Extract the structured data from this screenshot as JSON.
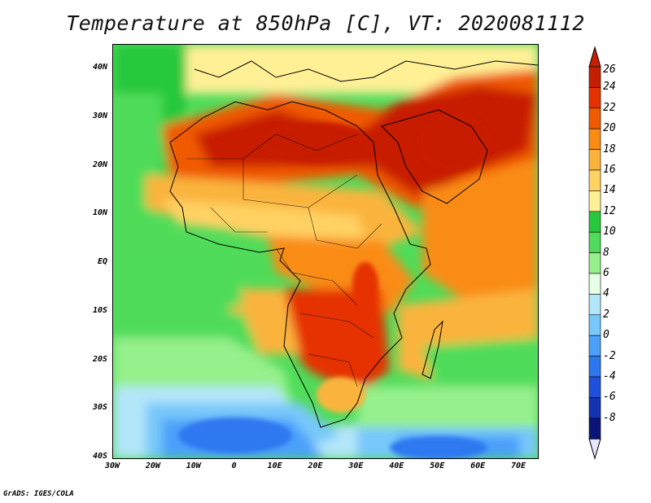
{
  "title": "Temperature at 850hPa [C], VT: 2020081112",
  "credit": "GrADS: IGES/COLA",
  "map": {
    "lat_ticks": [
      "40N",
      "30N",
      "20N",
      "10N",
      "EQ",
      "10S",
      "20S",
      "30S",
      "40S"
    ],
    "lon_ticks": [
      "30W",
      "20W",
      "10W",
      "0",
      "10E",
      "20E",
      "30E",
      "40E",
      "50E",
      "60E",
      "70E"
    ],
    "lat_range": [
      -40,
      45
    ],
    "lon_range": [
      -30,
      75
    ]
  },
  "colorbar": {
    "labels": [
      "26",
      "24",
      "22",
      "20",
      "18",
      "16",
      "14",
      "12",
      "10",
      "8",
      "6",
      "4",
      "2",
      "0",
      "-2",
      "-4",
      "-6",
      "-8"
    ],
    "colors": [
      "#c81e00",
      "#e63200",
      "#f05a00",
      "#fa8c14",
      "#fab43c",
      "#ffd264",
      "#fff096",
      "#28c83c",
      "#50dc5a",
      "#96f08c",
      "#e6ffe6",
      "#b4e6fa",
      "#78c8fa",
      "#4ba0fa",
      "#2d78f0",
      "#1e50dc",
      "#1432b4",
      "#0a1478"
    ],
    "top_arrow_color": "#c81e00",
    "bottom_arrow_color": "#e6e6ff"
  }
}
